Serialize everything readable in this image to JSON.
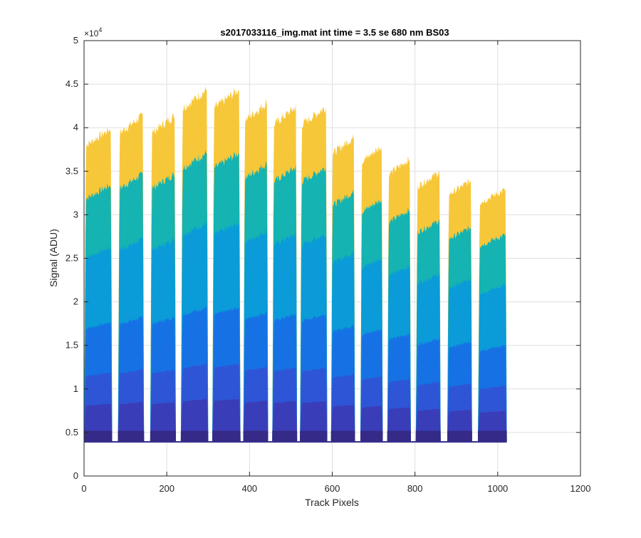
{
  "chart_data": {
    "type": "area",
    "title": "s2017033116_img.mat int time = 3.5 se  680 nm BS03",
    "xlabel": "Track Pixels",
    "ylabel": "Signal (ADU)",
    "y_multiplier_label": "×10",
    "y_multiplier_exponent": "4",
    "xlim": [
      0,
      1200
    ],
    "ylim": [
      0,
      50000
    ],
    "x_ticks": [
      0,
      200,
      400,
      600,
      800,
      1000,
      1200
    ],
    "x_tick_labels": [
      "0",
      "200",
      "400",
      "600",
      "800",
      "1000",
      "1200"
    ],
    "y_ticks": [
      0,
      5000,
      10000,
      15000,
      20000,
      25000,
      30000,
      35000,
      40000,
      45000,
      50000
    ],
    "y_tick_labels": [
      "0",
      "0.5",
      "1",
      "1.5",
      "2",
      "2.5",
      "3",
      "3.5",
      "4",
      "4.5",
      "5"
    ],
    "grid": true,
    "baseline": 4000,
    "tracks": [
      {
        "x_start": 0,
        "x_end": 68,
        "peak": 40000
      },
      {
        "x_start": 82,
        "x_end": 145,
        "peak": 41500
      },
      {
        "x_start": 160,
        "x_end": 222,
        "peak": 41500
      },
      {
        "x_start": 234,
        "x_end": 300,
        "peak": 44500
      },
      {
        "x_start": 310,
        "x_end": 378,
        "peak": 44500
      },
      {
        "x_start": 385,
        "x_end": 445,
        "peak": 43000
      },
      {
        "x_start": 455,
        "x_end": 515,
        "peak": 42500
      },
      {
        "x_start": 522,
        "x_end": 588,
        "peak": 42500
      },
      {
        "x_start": 597,
        "x_end": 655,
        "peak": 39000
      },
      {
        "x_start": 668,
        "x_end": 722,
        "peak": 38000
      },
      {
        "x_start": 733,
        "x_end": 790,
        "peak": 36500
      },
      {
        "x_start": 802,
        "x_end": 862,
        "peak": 35000
      },
      {
        "x_start": 878,
        "x_end": 938,
        "peak": 34000
      },
      {
        "x_start": 952,
        "x_end": 1022,
        "peak": 33000
      }
    ],
    "series": [
      {
        "color": "#352a87",
        "frac": 0.0
      },
      {
        "color": "#3a3db8",
        "frac": 0.12
      },
      {
        "color": "#2e55d6",
        "frac": 0.22
      },
      {
        "color": "#1672e4",
        "frac": 0.38
      },
      {
        "color": "#0a9bd8",
        "frac": 0.62
      },
      {
        "color": "#15b3b2",
        "frac": 0.82
      },
      {
        "color": "#f7c73a",
        "frac": 1.0
      }
    ]
  }
}
